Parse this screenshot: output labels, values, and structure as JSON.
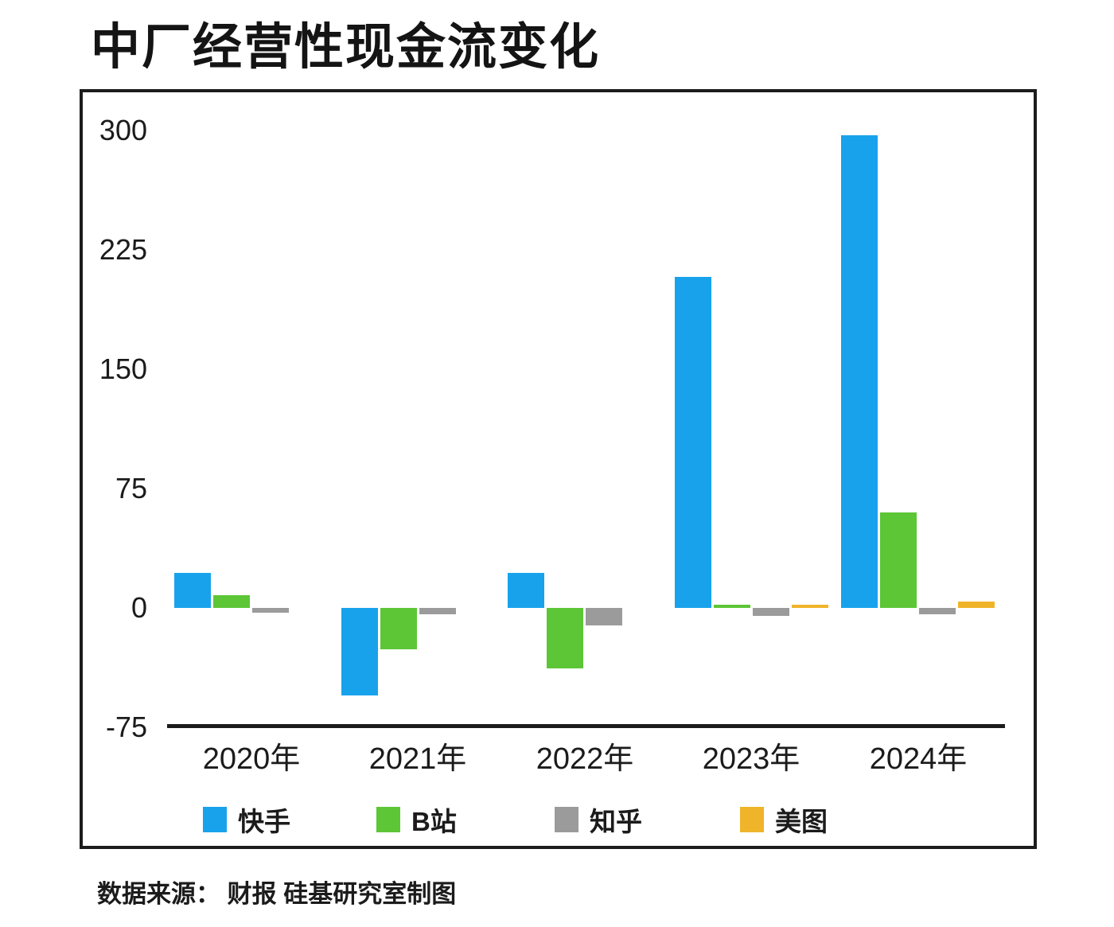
{
  "title": "中厂经营性现金流变化",
  "footer": {
    "source": "数据来源： 财报 硅基研究室制图"
  },
  "chart_data": {
    "type": "bar",
    "categories": [
      "2020年",
      "2021年",
      "2022年",
      "2023年",
      "2024年"
    ],
    "series": [
      {
        "name": "快手",
        "color": "#18a2ec",
        "values": [
          22,
          -55,
          22,
          208,
          297
        ]
      },
      {
        "name": "B站",
        "color": "#5cc636",
        "values": [
          8,
          -26,
          -38,
          2,
          60
        ]
      },
      {
        "name": "知乎",
        "color": "#9b9b9b",
        "values": [
          -3,
          -4,
          -11,
          -5,
          -4
        ]
      },
      {
        "name": "美图",
        "color": "#f0b42a",
        "values": [
          0,
          0,
          0,
          2,
          4
        ]
      }
    ],
    "y_ticks": [
      300,
      225,
      150,
      75,
      0,
      -75
    ],
    "ylim": [
      -75,
      300
    ],
    "xlabel": "",
    "ylabel": "",
    "grid": false,
    "legend_position": "bottom-inside",
    "axis_color": "#1b1b1b",
    "background_color": "#ffffff"
  }
}
